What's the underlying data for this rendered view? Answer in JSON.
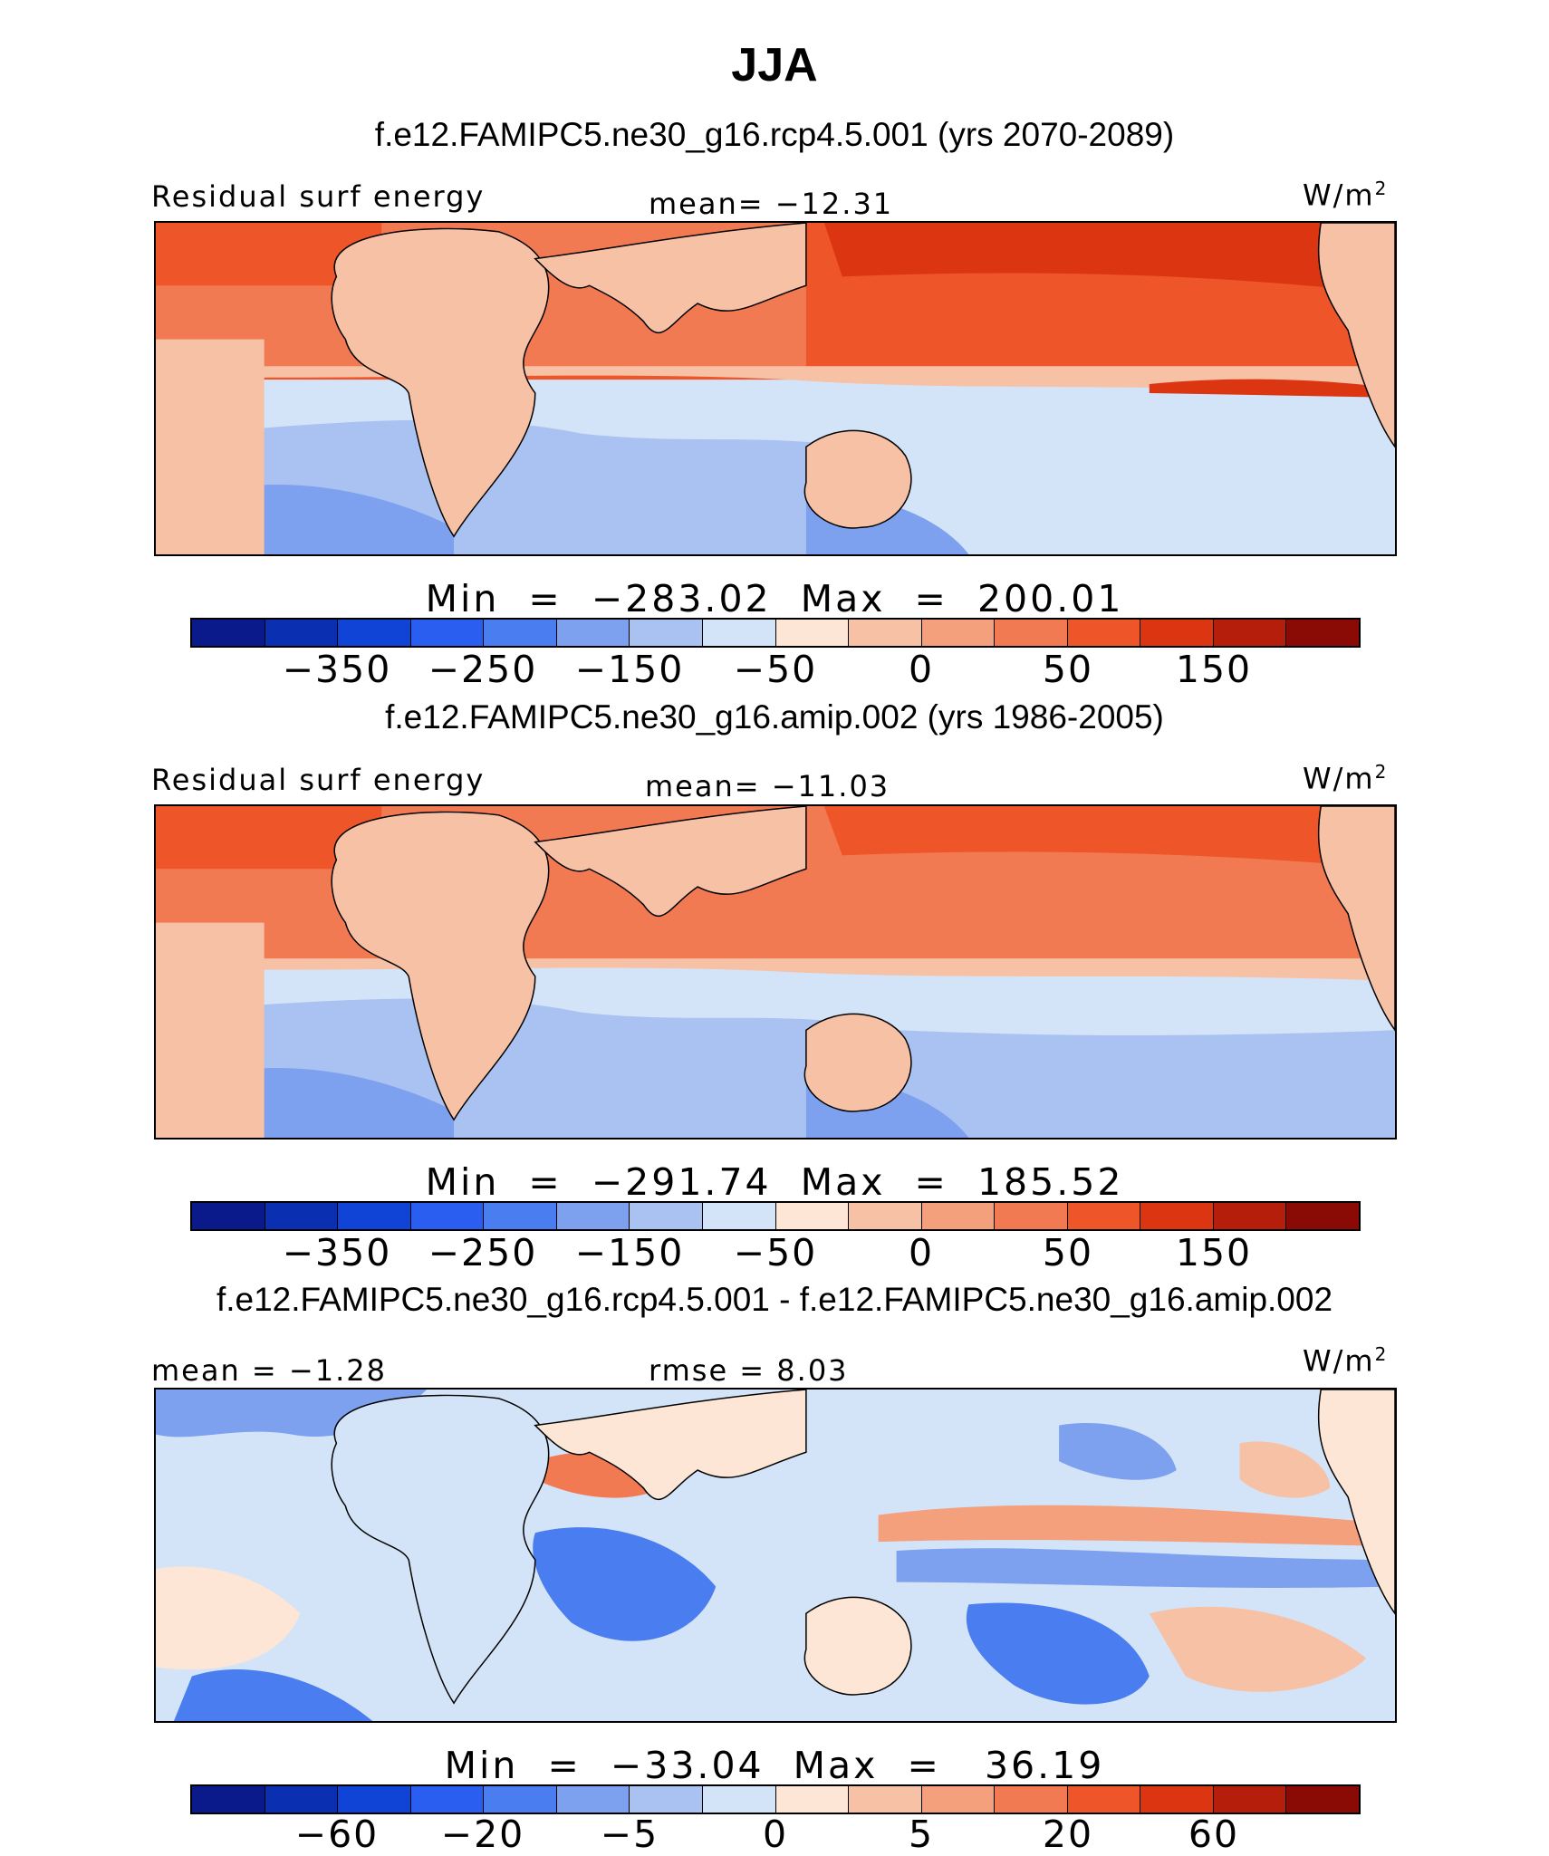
{
  "title": "JJA",
  "panels": [
    {
      "case_title": "f.e12.FAMIPC5.ne30_g16.rcp4.5.001 (yrs 2070-2089)",
      "left_label": "Residual surf energy",
      "center_label": "mean=  −12.31",
      "units": "W/m",
      "units_sup": "2",
      "minmax": "Min  =  −283.02  Max  =  200.01",
      "colorbar": {
        "colors": [
          "#0a1a8a",
          "#0a2fb0",
          "#0f44d6",
          "#2a5ef0",
          "#4a7ef0",
          "#7da0ef",
          "#a9c2f2",
          "#d3e4f8",
          "#fde6d6",
          "#f7c1a6",
          "#f5a07c",
          "#f27a52",
          "#ee5528",
          "#db3611",
          "#b41e0a",
          "#8a0b05"
        ],
        "tick_labels": [
          "−350",
          "−250",
          "−150",
          "−50",
          "0",
          "50",
          "150"
        ]
      }
    },
    {
      "case_title": "f.e12.FAMIPC5.ne30_g16.amip.002 (yrs 1986-2005)",
      "left_label": "Residual surf energy",
      "center_label": "mean=  −11.03",
      "units": "W/m",
      "units_sup": "2",
      "minmax": "Min  =  −291.74  Max  =  185.52",
      "colorbar": {
        "colors": [
          "#0a1a8a",
          "#0a2fb0",
          "#0f44d6",
          "#2a5ef0",
          "#4a7ef0",
          "#7da0ef",
          "#a9c2f2",
          "#d3e4f8",
          "#fde6d6",
          "#f7c1a6",
          "#f5a07c",
          "#f27a52",
          "#ee5528",
          "#db3611",
          "#b41e0a",
          "#8a0b05"
        ],
        "tick_labels": [
          "−350",
          "−250",
          "−150",
          "−50",
          "0",
          "50",
          "150"
        ]
      }
    },
    {
      "case_title": "f.e12.FAMIPC5.ne30_g16.rcp4.5.001 - f.e12.FAMIPC5.ne30_g16.amip.002",
      "left_label": "mean =   −1.28",
      "center_label": "rmse =    8.03",
      "units": "W/m",
      "units_sup": "2",
      "minmax": "Min  =  −33.04  Max  =   36.19",
      "colorbar": {
        "colors": [
          "#0a1a8a",
          "#0a2fb0",
          "#0f44d6",
          "#2a5ef0",
          "#4a7ef0",
          "#7da0ef",
          "#a9c2f2",
          "#d3e4f8",
          "#fde6d6",
          "#f7c1a6",
          "#f5a07c",
          "#f27a52",
          "#ee5528",
          "#db3611",
          "#b41e0a",
          "#8a0b05"
        ],
        "tick_labels": [
          "−60",
          "−20",
          "−5",
          "0",
          "5",
          "20",
          "60"
        ]
      }
    }
  ]
}
